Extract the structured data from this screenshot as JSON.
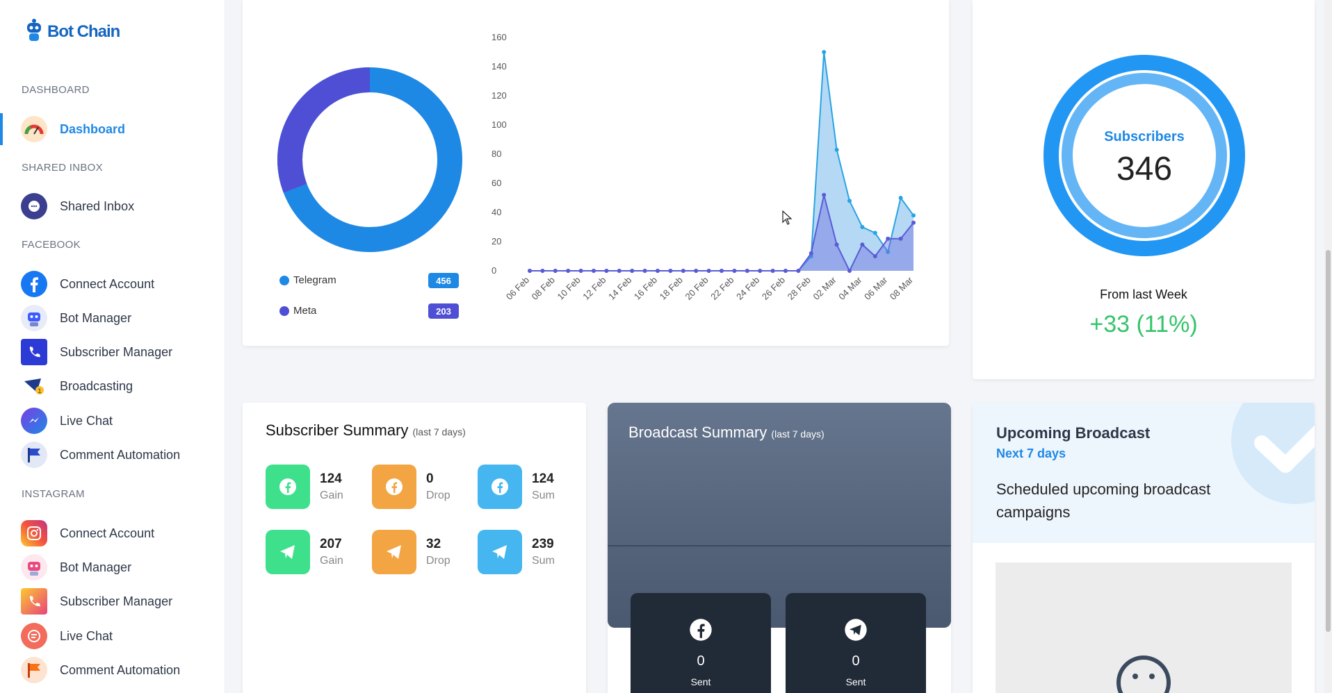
{
  "sidebar": {
    "brand": "Bot Chain",
    "sections": {
      "dashboard": "DASHBOARD",
      "shared_inbox": "SHARED INBOX",
      "facebook": "FACEBOOK",
      "instagram": "INSTAGRAM"
    },
    "items": {
      "dashboard": "Dashboard",
      "shared_inbox": "Shared Inbox",
      "fb_connect": "Connect Account",
      "fb_bot": "Bot Manager",
      "fb_subscriber": "Subscriber Manager",
      "fb_broadcast": "Broadcasting",
      "fb_livechat": "Live Chat",
      "fb_comment": "Comment Automation",
      "ig_connect": "Connect Account",
      "ig_bot": "Bot Manager",
      "ig_subscriber": "Subscriber Manager",
      "ig_livechat": "Live Chat",
      "ig_comment": "Comment Automation"
    }
  },
  "donut": {
    "legend": [
      {
        "label": "Telegram",
        "count": "456",
        "color": "#1e88e5"
      },
      {
        "label": "Meta",
        "count": "203",
        "color": "#4e4fd4"
      }
    ]
  },
  "chart_data": {
    "type": "area",
    "x": [
      "06 Feb",
      "07 Feb",
      "08 Feb",
      "09 Feb",
      "10 Feb",
      "11 Feb",
      "12 Feb",
      "13 Feb",
      "14 Feb",
      "15 Feb",
      "16 Feb",
      "17 Feb",
      "18 Feb",
      "19 Feb",
      "20 Feb",
      "21 Feb",
      "22 Feb",
      "23 Feb",
      "24 Feb",
      "25 Feb",
      "26 Feb",
      "27 Feb",
      "28 Feb",
      "01 Mar",
      "02 Mar",
      "03 Mar",
      "04 Mar",
      "05 Mar",
      "06 Mar",
      "07 Mar",
      "08 Mar"
    ],
    "xticks": [
      "06 Feb",
      "08 Feb",
      "10 Feb",
      "12 Feb",
      "14 Feb",
      "16 Feb",
      "18 Feb",
      "20 Feb",
      "22 Feb",
      "24 Feb",
      "26 Feb",
      "28 Feb",
      "02 Mar",
      "04 Mar",
      "06 Mar",
      "08 Mar"
    ],
    "series": [
      {
        "name": "Telegram",
        "color": "#29a3e3",
        "values": [
          0,
          0,
          0,
          0,
          0,
          0,
          0,
          0,
          0,
          0,
          0,
          0,
          0,
          0,
          0,
          0,
          0,
          0,
          0,
          0,
          0,
          0,
          10,
          150,
          83,
          48,
          30,
          26,
          13,
          50,
          38
        ]
      },
      {
        "name": "Meta",
        "color": "#5b5bd6",
        "values": [
          0,
          0,
          0,
          0,
          0,
          0,
          0,
          0,
          0,
          0,
          0,
          0,
          0,
          0,
          0,
          0,
          0,
          0,
          0,
          0,
          0,
          0,
          12,
          52,
          18,
          0,
          18,
          10,
          22,
          22,
          33
        ]
      }
    ],
    "yticks": [
      0,
      20,
      40,
      60,
      80,
      100,
      120,
      140,
      160
    ],
    "ylim": [
      0,
      160
    ]
  },
  "subscribers": {
    "label": "Subscribers",
    "count": "346",
    "from_label": "From last Week",
    "change": "+33 (11%)",
    "change_color": "#35c46b"
  },
  "subscriber_summary": {
    "title": "Subscriber Summary",
    "subtitle": "(last 7 days)",
    "facebook": [
      {
        "value": "124",
        "label": "Gain"
      },
      {
        "value": "0",
        "label": "Drop"
      },
      {
        "value": "124",
        "label": "Sum"
      }
    ],
    "telegram": [
      {
        "value": "207",
        "label": "Gain"
      },
      {
        "value": "32",
        "label": "Drop"
      },
      {
        "value": "239",
        "label": "Sum"
      }
    ]
  },
  "broadcast_summary": {
    "title": "Broadcast Summary",
    "subtitle": "(last 7 days)",
    "tiles": [
      {
        "value": "0",
        "label": "Sent"
      },
      {
        "value": "0",
        "label": "Sent"
      }
    ]
  },
  "upcoming": {
    "title": "Upcoming Broadcast",
    "subtitle": "Next 7 days",
    "description": "Scheduled upcoming broadcast campaigns"
  }
}
